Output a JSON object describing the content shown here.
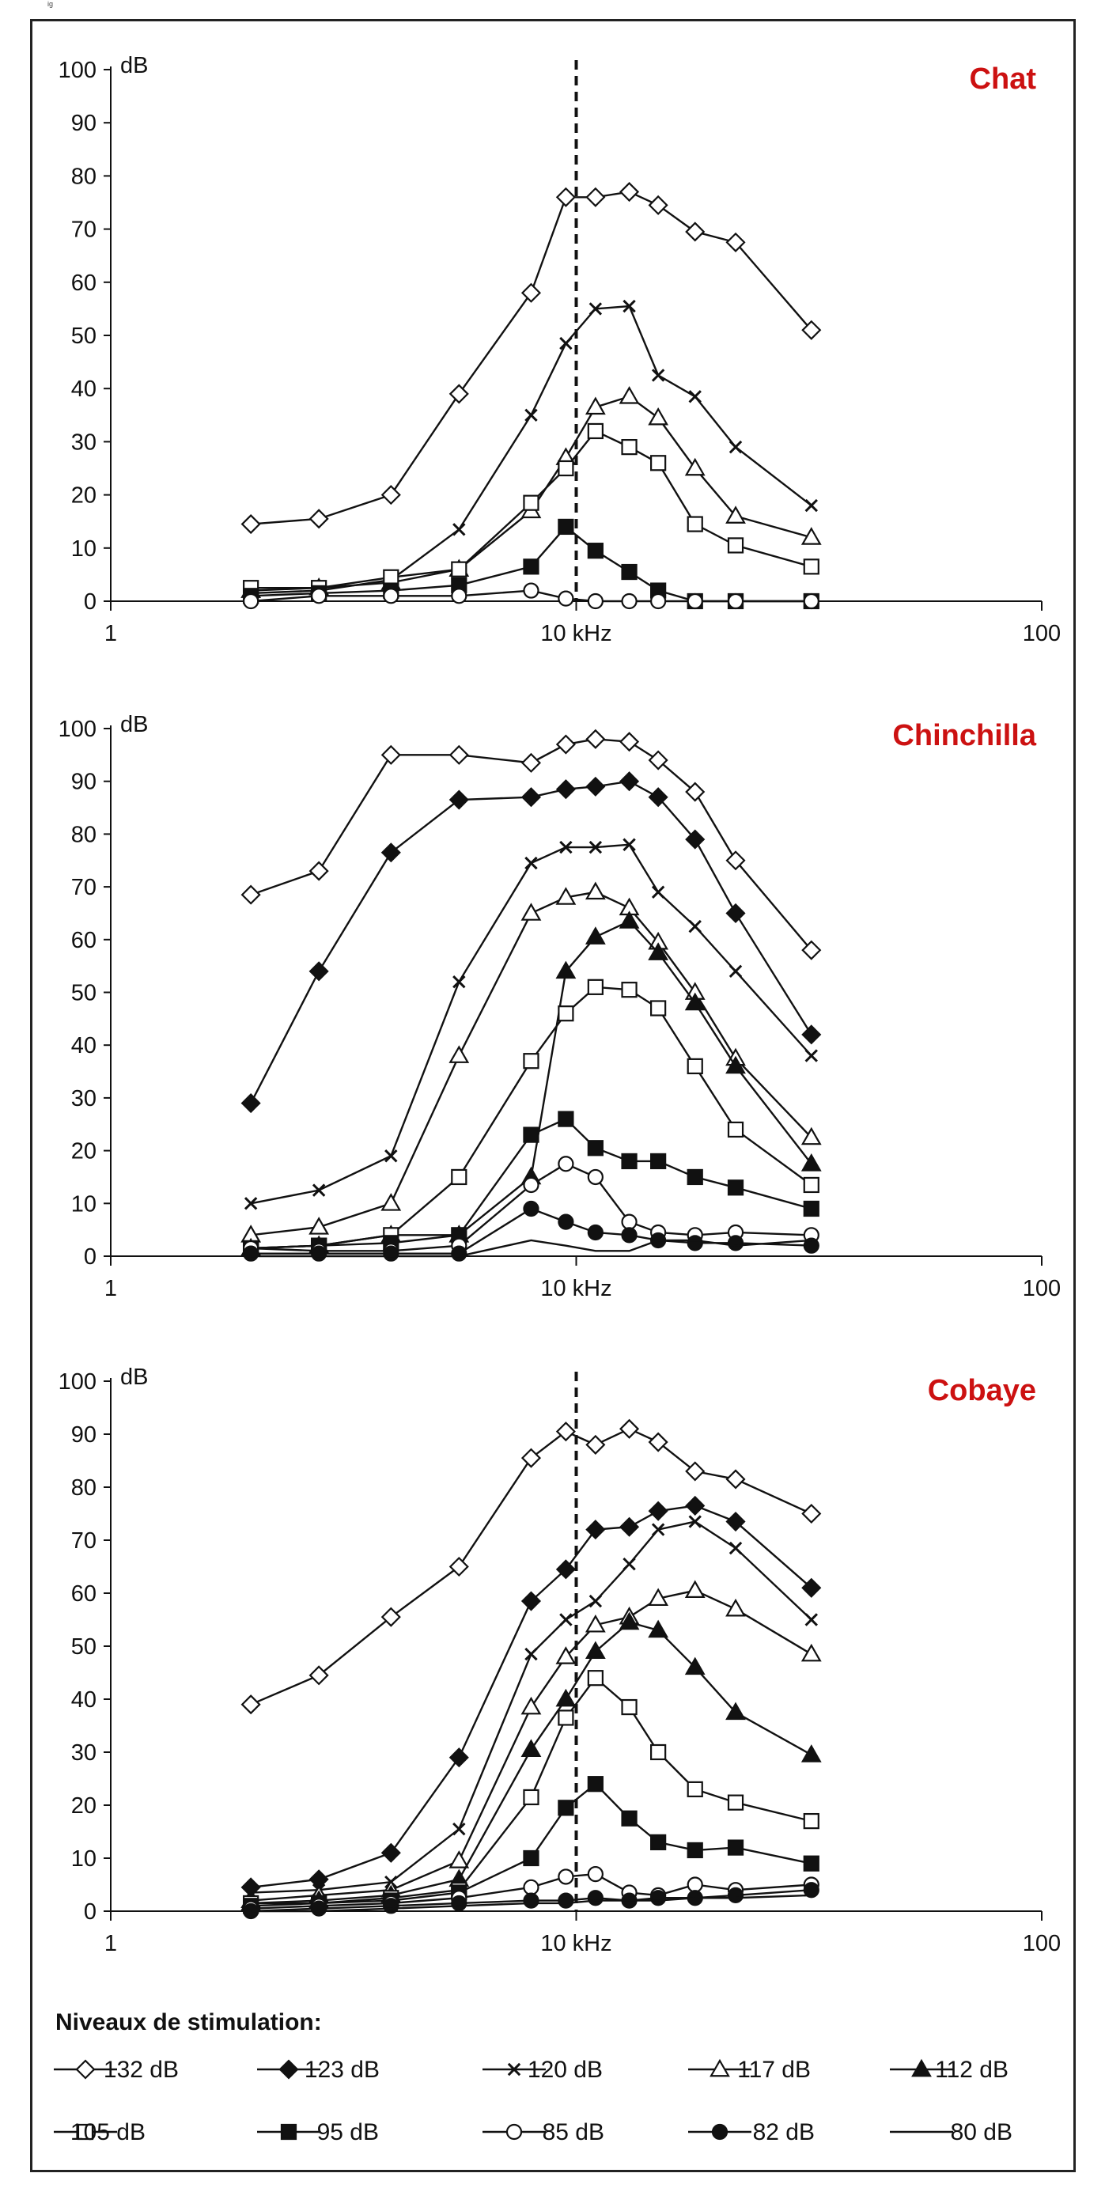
{
  "figure_label": "ig",
  "colors": {
    "title": "#cc1111",
    "line": "#111111",
    "axis": "#111111"
  },
  "legend": {
    "title": "Niveaux de stimulation:",
    "items": [
      {
        "label": "132 dB",
        "marker": "diamond-open"
      },
      {
        "label": "123 dB",
        "marker": "diamond-filled"
      },
      {
        "label": "120 dB",
        "marker": "cross"
      },
      {
        "label": "117 dB",
        "marker": "triangle-open"
      },
      {
        "label": "112 dB",
        "marker": "triangle-filled"
      },
      {
        "label": "105 dB",
        "marker": "square-open"
      },
      {
        "label": "95 dB",
        "marker": "square-filled"
      },
      {
        "label": "85 dB",
        "marker": "circle-open"
      },
      {
        "label": "82 dB",
        "marker": "circle-filled"
      },
      {
        "label": "80 dB",
        "marker": "none"
      }
    ]
  },
  "chart_data": [
    {
      "type": "line",
      "title": "Chat",
      "ylabel": "dB",
      "xscale": "log",
      "xlim": [
        1,
        100
      ],
      "ylim": [
        0,
        100
      ],
      "xticks": [
        {
          "v": 1,
          "label": "1"
        },
        {
          "v": 10,
          "label": "10 kHz"
        },
        {
          "v": 100,
          "label": "100"
        }
      ],
      "yticks": [
        0,
        10,
        20,
        30,
        40,
        50,
        60,
        70,
        80,
        90,
        100
      ],
      "vline": 10,
      "grid": false,
      "series": [
        {
          "name": "132 dB",
          "marker": "diamond-open",
          "x": [
            2,
            2.8,
            4,
            5.6,
            8,
            9.5,
            11,
            13,
            15,
            18,
            22,
            32
          ],
          "y": [
            14.5,
            15.5,
            20,
            39,
            58,
            76,
            76,
            77,
            74.5,
            69.5,
            67.5,
            51
          ]
        },
        {
          "name": "120 dB",
          "marker": "cross",
          "x": [
            2,
            2.8,
            4,
            5.6,
            8,
            9.5,
            11,
            13,
            15,
            18,
            22,
            32
          ],
          "y": [
            1.5,
            2,
            4,
            13.5,
            35,
            48.5,
            55,
            55.5,
            42.5,
            38.5,
            29,
            18
          ]
        },
        {
          "name": "117 dB",
          "marker": "triangle-open",
          "x": [
            2,
            2.8,
            4,
            5.6,
            8,
            9.5,
            11,
            13,
            15,
            18,
            22,
            32
          ],
          "y": [
            2,
            2.5,
            3.5,
            6,
            17,
            27,
            36.5,
            38.5,
            34.5,
            25,
            16,
            12
          ]
        },
        {
          "name": "105 dB",
          "marker": "square-open",
          "x": [
            2,
            2.8,
            4,
            5.6,
            8,
            9.5,
            11,
            13,
            15,
            18,
            22,
            32
          ],
          "y": [
            2.5,
            2.5,
            4.5,
            6,
            18.5,
            25,
            32,
            29,
            26,
            14.5,
            10.5,
            6.5
          ]
        },
        {
          "name": "95 dB",
          "marker": "square-filled",
          "x": [
            2,
            2.8,
            4,
            5.6,
            8,
            9.5,
            11,
            13,
            15,
            18,
            22,
            32
          ],
          "y": [
            1,
            1.5,
            2,
            3,
            6.5,
            14,
            9.5,
            5.5,
            2,
            0,
            0,
            0
          ]
        },
        {
          "name": "85 dB",
          "marker": "circle-open",
          "x": [
            2,
            2.8,
            4,
            5.6,
            8,
            9.5,
            11,
            13,
            15,
            18,
            22,
            32
          ],
          "y": [
            0,
            1,
            1,
            1,
            2,
            0.5,
            0,
            0,
            0,
            0,
            0,
            0
          ]
        }
      ]
    },
    {
      "type": "line",
      "title": "Chinchilla",
      "ylabel": "dB",
      "xscale": "log",
      "xlim": [
        1,
        100
      ],
      "ylim": [
        0,
        100
      ],
      "xticks": [
        {
          "v": 1,
          "label": "1"
        },
        {
          "v": 10,
          "label": "10 kHz"
        },
        {
          "v": 100,
          "label": "100"
        }
      ],
      "yticks": [
        0,
        10,
        20,
        30,
        40,
        50,
        60,
        70,
        80,
        90,
        100
      ],
      "vline": null,
      "grid": false,
      "series": [
        {
          "name": "132 dB",
          "marker": "diamond-open",
          "x": [
            2,
            2.8,
            4,
            5.6,
            8,
            9.5,
            11,
            13,
            15,
            18,
            22,
            32
          ],
          "y": [
            68.5,
            73,
            95,
            95,
            93.5,
            97,
            98,
            97.5,
            94,
            88,
            75,
            58
          ]
        },
        {
          "name": "123 dB",
          "marker": "diamond-filled",
          "x": [
            2,
            2.8,
            4,
            5.6,
            8,
            9.5,
            11,
            13,
            15,
            18,
            22,
            32
          ],
          "y": [
            29,
            54,
            76.5,
            86.5,
            87,
            88.5,
            89,
            90,
            87,
            79,
            65,
            42
          ]
        },
        {
          "name": "120 dB",
          "marker": "cross",
          "x": [
            2,
            2.8,
            4,
            5.6,
            8,
            9.5,
            11,
            13,
            15,
            18,
            22,
            32
          ],
          "y": [
            10,
            12.5,
            19,
            52,
            74.5,
            77.5,
            77.5,
            78,
            69,
            62.5,
            54,
            38
          ]
        },
        {
          "name": "117 dB",
          "marker": "triangle-open",
          "x": [
            2,
            2.8,
            4,
            5.6,
            8,
            9.5,
            11,
            13,
            15,
            18,
            22,
            32
          ],
          "y": [
            4,
            5.5,
            10,
            38,
            65,
            68,
            69,
            66,
            59.5,
            50,
            37.5,
            22.5
          ]
        },
        {
          "name": "112 dB",
          "marker": "triangle-filled",
          "x": [
            2,
            2.8,
            4,
            5.6,
            8,
            9.5,
            11,
            13,
            15,
            18,
            22,
            32
          ],
          "y": [
            1.5,
            2,
            4,
            4,
            15,
            54,
            60.5,
            63.5,
            57.5,
            48,
            36,
            17.5
          ]
        },
        {
          "name": "105 dB",
          "marker": "square-open",
          "x": [
            2,
            2.8,
            4,
            5.6,
            8,
            9.5,
            11,
            13,
            15,
            18,
            22,
            32
          ],
          "y": [
            1.5,
            2,
            4,
            15,
            37,
            46,
            51,
            50.5,
            47,
            36,
            24,
            13.5
          ]
        },
        {
          "name": "95 dB",
          "marker": "square-filled",
          "x": [
            2,
            2.8,
            4,
            5.6,
            8,
            9.5,
            11,
            13,
            15,
            18,
            22,
            32
          ],
          "y": [
            1.5,
            2,
            2.5,
            4,
            23,
            26,
            20.5,
            18,
            18,
            15,
            13,
            9
          ]
        },
        {
          "name": "85 dB",
          "marker": "circle-open",
          "x": [
            2,
            2.8,
            4,
            5.6,
            8,
            9.5,
            11,
            13,
            15,
            18,
            22,
            32
          ],
          "y": [
            1.5,
            1,
            1,
            2,
            13.5,
            17.5,
            15,
            6.5,
            4.5,
            4,
            4.5,
            4
          ]
        },
        {
          "name": "82 dB",
          "marker": "circle-filled",
          "x": [
            2,
            2.8,
            4,
            5.6,
            8,
            9.5,
            11,
            13,
            15,
            18,
            22,
            32
          ],
          "y": [
            0.5,
            0.5,
            0.5,
            0.5,
            9,
            6.5,
            4.5,
            4,
            3,
            2.5,
            2.5,
            2
          ]
        },
        {
          "name": "80 dB",
          "marker": "none",
          "x": [
            2,
            2.8,
            4,
            5.6,
            8,
            9.5,
            11,
            13,
            15,
            18,
            22,
            32
          ],
          "y": [
            0,
            0,
            0,
            0,
            3,
            2,
            1,
            1,
            3,
            3,
            2,
            3
          ]
        }
      ]
    },
    {
      "type": "line",
      "title": "Cobaye",
      "ylabel": "dB",
      "xscale": "log",
      "xlim": [
        1,
        100
      ],
      "ylim": [
        0,
        100
      ],
      "xticks": [
        {
          "v": 1,
          "label": "1"
        },
        {
          "v": 10,
          "label": "10 kHz"
        },
        {
          "v": 100,
          "label": "100"
        }
      ],
      "yticks": [
        0,
        10,
        20,
        30,
        40,
        50,
        60,
        70,
        80,
        90,
        100
      ],
      "vline": 10,
      "grid": false,
      "series": [
        {
          "name": "132 dB",
          "marker": "diamond-open",
          "x": [
            2,
            2.8,
            4,
            5.6,
            8,
            9.5,
            11,
            13,
            15,
            18,
            22,
            32
          ],
          "y": [
            39,
            44.5,
            55.5,
            65,
            85.5,
            90.5,
            88,
            91,
            88.5,
            83,
            81.5,
            75
          ]
        },
        {
          "name": "123 dB",
          "marker": "diamond-filled",
          "x": [
            2,
            2.8,
            4,
            5.6,
            8,
            9.5,
            11,
            13,
            15,
            18,
            22,
            32
          ],
          "y": [
            4.5,
            6,
            11,
            29,
            58.5,
            64.5,
            72,
            72.5,
            75.5,
            76.5,
            73.5,
            61
          ]
        },
        {
          "name": "120 dB",
          "marker": "cross",
          "x": [
            2,
            2.8,
            4,
            5.6,
            8,
            9.5,
            11,
            13,
            15,
            18,
            22,
            32
          ],
          "y": [
            3.5,
            4,
            5.5,
            15.5,
            48.5,
            55,
            58.5,
            65.5,
            72,
            73.5,
            68.5,
            55
          ]
        },
        {
          "name": "117 dB",
          "marker": "triangle-open",
          "x": [
            2,
            2.8,
            4,
            5.6,
            8,
            9.5,
            11,
            13,
            15,
            18,
            22,
            32
          ],
          "y": [
            2,
            3,
            4,
            9.5,
            38.5,
            48,
            54,
            55.5,
            59,
            60.5,
            57,
            48.5
          ]
        },
        {
          "name": "112 dB",
          "marker": "triangle-filled",
          "x": [
            2,
            2.8,
            4,
            5.6,
            8,
            9.5,
            11,
            13,
            15,
            18,
            22,
            32
          ],
          "y": [
            1.5,
            2,
            3,
            6,
            30.5,
            40,
            49,
            54.5,
            53,
            46,
            37.5,
            29.5
          ]
        },
        {
          "name": "105 dB",
          "marker": "square-open",
          "x": [
            2,
            2.8,
            4,
            5.6,
            8,
            9.5,
            11,
            13,
            15,
            18,
            22,
            32
          ],
          "y": [
            1.5,
            1.5,
            2.5,
            4,
            21.5,
            36.5,
            44,
            38.5,
            30,
            23,
            20.5,
            17
          ]
        },
        {
          "name": "95 dB",
          "marker": "square-filled",
          "x": [
            2,
            2.8,
            4,
            5.6,
            8,
            9.5,
            11,
            13,
            15,
            18,
            22,
            32
          ],
          "y": [
            1,
            1.5,
            2,
            3.5,
            10,
            19.5,
            24,
            17.5,
            13,
            11.5,
            12,
            9
          ]
        },
        {
          "name": "85 dB",
          "marker": "circle-open",
          "x": [
            2,
            2.8,
            4,
            5.6,
            8,
            9.5,
            11,
            13,
            15,
            18,
            22,
            32
          ],
          "y": [
            0.5,
            1,
            1.5,
            2.5,
            4.5,
            6.5,
            7,
            3.5,
            3,
            5,
            4,
            5
          ]
        },
        {
          "name": "82 dB",
          "marker": "circle-filled",
          "x": [
            2,
            2.8,
            4,
            5.6,
            8,
            9.5,
            11,
            13,
            15,
            18,
            22,
            32
          ],
          "y": [
            0,
            0.5,
            1,
            1.5,
            2,
            2,
            2.5,
            2,
            2.5,
            2.5,
            3,
            4
          ]
        },
        {
          "name": "80 dB",
          "marker": "none",
          "x": [
            2,
            2.8,
            4,
            5.6,
            8,
            9.5,
            11,
            13,
            15,
            18,
            22,
            32
          ],
          "y": [
            0,
            0,
            0.5,
            1,
            1.5,
            1.5,
            2,
            2,
            2,
            2.5,
            2.5,
            3
          ]
        }
      ]
    }
  ]
}
